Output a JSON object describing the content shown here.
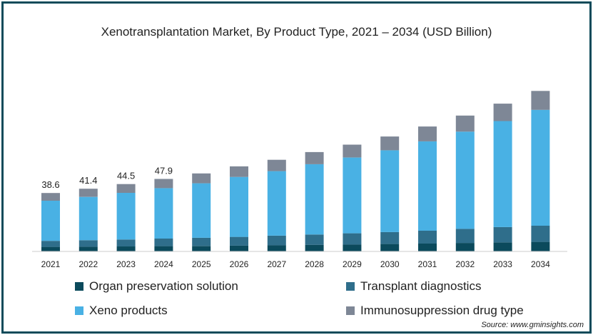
{
  "chart_data": {
    "type": "bar",
    "stacked": true,
    "title": "Xenotransplantation Market, By Product Type, 2021 – 2034 (USD Billion)",
    "categories": [
      "2021",
      "2022",
      "2023",
      "2024",
      "2025",
      "2026",
      "2027",
      "2028",
      "2029",
      "2030",
      "2031",
      "2032",
      "2033",
      "2034"
    ],
    "series": [
      {
        "name": "Organ preservation solution",
        "color": "#0b4a5c",
        "values": [
          3.0,
          3.1,
          3.3,
          3.5,
          3.6,
          3.8,
          4.1,
          4.4,
          4.6,
          4.9,
          5.2,
          5.6,
          6.0,
          6.3
        ]
      },
      {
        "name": "Transplant diagnostics",
        "color": "#2f6e8b",
        "values": [
          4.0,
          4.3,
          4.6,
          5.0,
          5.4,
          5.8,
          6.3,
          6.8,
          7.4,
          7.9,
          8.5,
          9.3,
          10.1,
          10.7
        ]
      },
      {
        "name": "Xeno products",
        "color": "#49b1e4",
        "values": [
          26.5,
          28.6,
          30.8,
          33.3,
          36.0,
          39.6,
          42.6,
          46.4,
          50.0,
          54.0,
          59.0,
          64.2,
          70.0,
          76.5
        ]
      },
      {
        "name": "Immunosuppression drug type",
        "color": "#7e8796",
        "values": [
          5.1,
          5.4,
          5.8,
          6.1,
          6.5,
          7.0,
          7.5,
          8.0,
          8.5,
          9.1,
          9.8,
          10.6,
          11.5,
          12.5
        ]
      }
    ],
    "data_labels": [
      "38.6",
      "41.4",
      "44.5",
      "47.9",
      null,
      null,
      null,
      null,
      null,
      null,
      null,
      null,
      null,
      null
    ],
    "xlabel": "",
    "ylabel": "",
    "ylim": [
      0,
      125
    ],
    "grid": false,
    "legend_position": "bottom"
  },
  "source_text": "Source: www.gminsights.com"
}
